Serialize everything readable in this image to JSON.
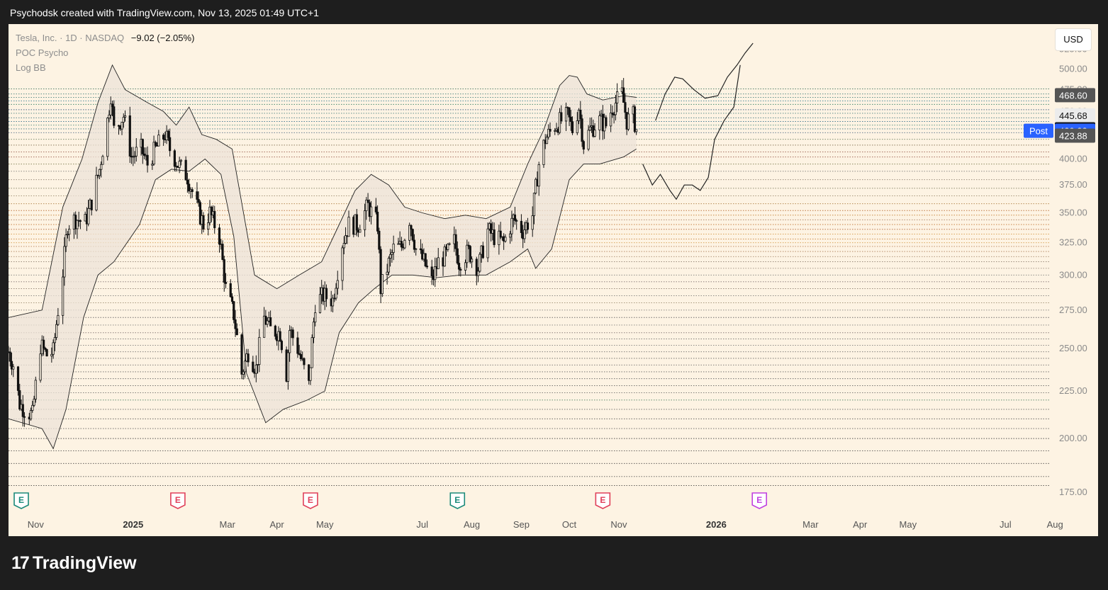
{
  "header": {
    "text": "Psychodsk created with TradingView.com, Nov 13, 2025 01:49 UTC+1"
  },
  "legend": {
    "symbol": "Tesla, Inc. · 1D · NASDAQ",
    "change": "−9.02 (−2.05%)",
    "indicator1": "POC Psycho",
    "indicator2": "Log BB"
  },
  "currency_button": "USD",
  "brand": "TradingView",
  "chart_data": {
    "type": "candlestick",
    "y_axis": {
      "scale": "log",
      "range": [
        172,
        555
      ],
      "ticks": [
        "175.00",
        "200.00",
        "225.00",
        "250.00",
        "275.00",
        "300.00",
        "325.00",
        "350.00",
        "375.00",
        "400.00",
        "425.00",
        "450.00",
        "475.00",
        "500.00",
        "525.00"
      ]
    },
    "x_axis": {
      "range": [
        "2024-10-15",
        "2026-08-28"
      ],
      "ticks": [
        {
          "label": "Nov",
          "date": "2024-11-01",
          "bold": false
        },
        {
          "label": "2025",
          "date": "2025-01-01",
          "bold": true
        },
        {
          "label": "Mar",
          "date": "2025-03-01",
          "bold": false
        },
        {
          "label": "Apr",
          "date": "2025-04-01",
          "bold": false
        },
        {
          "label": "May",
          "date": "2025-05-01",
          "bold": false
        },
        {
          "label": "Jul",
          "date": "2025-07-01",
          "bold": false
        },
        {
          "label": "Aug",
          "date": "2025-08-01",
          "bold": false
        },
        {
          "label": "Sep",
          "date": "2025-09-01",
          "bold": false
        },
        {
          "label": "Oct",
          "date": "2025-10-01",
          "bold": false
        },
        {
          "label": "Nov",
          "date": "2025-11-01",
          "bold": false
        },
        {
          "label": "2026",
          "date": "2026-01-01",
          "bold": true
        },
        {
          "label": "Mar",
          "date": "2026-03-01",
          "bold": false
        },
        {
          "label": "Apr",
          "date": "2026-04-01",
          "bold": false
        },
        {
          "label": "May",
          "date": "2026-05-01",
          "bold": false
        },
        {
          "label": "Jul",
          "date": "2026-07-01",
          "bold": false
        },
        {
          "label": "Aug",
          "date": "2026-08-01",
          "bold": false
        }
      ]
    },
    "price_series": [
      [
        "2024-10-15",
        248
      ],
      [
        "2024-10-18",
        240
      ],
      [
        "2024-10-22",
        218
      ],
      [
        "2024-10-25",
        215
      ],
      [
        "2024-10-30",
        212
      ],
      [
        "2024-11-04",
        252
      ],
      [
        "2024-11-08",
        246
      ],
      [
        "2024-11-12",
        248
      ],
      [
        "2024-11-18",
        302
      ],
      [
        "2024-11-21",
        340
      ],
      [
        "2024-11-26",
        345
      ],
      [
        "2024-12-02",
        342
      ],
      [
        "2024-12-06",
        360
      ],
      [
        "2024-12-11",
        390
      ],
      [
        "2024-12-16",
        440
      ],
      [
        "2024-12-18",
        470
      ],
      [
        "2024-12-20",
        430
      ],
      [
        "2024-12-26",
        445
      ],
      [
        "2024-12-31",
        402
      ],
      [
        "2025-01-06",
        410
      ],
      [
        "2025-01-10",
        395
      ],
      [
        "2025-01-15",
        410
      ],
      [
        "2025-01-21",
        425
      ],
      [
        "2025-01-24",
        410
      ],
      [
        "2025-01-29",
        395
      ],
      [
        "2025-02-04",
        383
      ],
      [
        "2025-02-10",
        355
      ],
      [
        "2025-02-14",
        340
      ],
      [
        "2025-02-18",
        350
      ],
      [
        "2025-02-24",
        330
      ],
      [
        "2025-02-28",
        290
      ],
      [
        "2025-03-05",
        272
      ],
      [
        "2025-03-10",
        235
      ],
      [
        "2025-03-14",
        248
      ],
      [
        "2025-03-19",
        238
      ],
      [
        "2025-03-24",
        270
      ],
      [
        "2025-03-28",
        262
      ],
      [
        "2025-04-03",
        260
      ],
      [
        "2025-04-07",
        235
      ],
      [
        "2025-04-09",
        262
      ],
      [
        "2025-04-14",
        250
      ],
      [
        "2025-04-21",
        228
      ],
      [
        "2025-04-25",
        280
      ],
      [
        "2025-04-30",
        285
      ],
      [
        "2025-05-06",
        282
      ],
      [
        "2025-05-12",
        325
      ],
      [
        "2025-05-16",
        340
      ],
      [
        "2025-05-22",
        340
      ],
      [
        "2025-05-28",
        356
      ],
      [
        "2025-06-03",
        340
      ],
      [
        "2025-06-05",
        290
      ],
      [
        "2025-06-09",
        305
      ],
      [
        "2025-06-13",
        320
      ],
      [
        "2025-06-18",
        322
      ],
      [
        "2025-06-23",
        345
      ],
      [
        "2025-06-27",
        320
      ],
      [
        "2025-07-02",
        310
      ],
      [
        "2025-07-07",
        295
      ],
      [
        "2025-07-11",
        310
      ],
      [
        "2025-07-16",
        315
      ],
      [
        "2025-07-21",
        326
      ],
      [
        "2025-07-24",
        310
      ],
      [
        "2025-07-30",
        318
      ],
      [
        "2025-08-05",
        305
      ],
      [
        "2025-08-11",
        335
      ],
      [
        "2025-08-15",
        330
      ],
      [
        "2025-08-21",
        325
      ],
      [
        "2025-08-27",
        345
      ],
      [
        "2025-09-02",
        335
      ],
      [
        "2025-09-08",
        348
      ],
      [
        "2025-09-12",
        395
      ],
      [
        "2025-09-16",
        420
      ],
      [
        "2025-09-22",
        435
      ],
      [
        "2025-09-26",
        440
      ],
      [
        "2025-09-30",
        445
      ],
      [
        "2025-10-03",
        430
      ],
      [
        "2025-10-07",
        455
      ],
      [
        "2025-10-10",
        415
      ],
      [
        "2025-10-14",
        430
      ],
      [
        "2025-10-20",
        440
      ],
      [
        "2025-10-24",
        435
      ],
      [
        "2025-10-28",
        455
      ],
      [
        "2025-11-03",
        470
      ],
      [
        "2025-11-06",
        440
      ],
      [
        "2025-11-10",
        445
      ],
      [
        "2025-11-12",
        430
      ]
    ],
    "last_price": 430.6,
    "price_labels": [
      {
        "value": 468.6,
        "text": "468.60",
        "bg": "#555555"
      },
      {
        "value": 445.68,
        "text": "445.68",
        "bg": "#ececec"
      },
      {
        "value": 430.6,
        "text": "430.60",
        "bg": "#131722"
      },
      {
        "value": 429.03,
        "text": "429.03",
        "bg": "#2962ff",
        "tag": "Post"
      },
      {
        "value": 423.88,
        "text": "423.88",
        "bg": "#555555"
      }
    ],
    "bollinger_bands": {
      "upper": [
        [
          "2024-10-15",
          270
        ],
        [
          "2024-11-05",
          275
        ],
        [
          "2024-11-18",
          355
        ],
        [
          "2024-11-30",
          400
        ],
        [
          "2024-12-10",
          460
        ],
        [
          "2024-12-19",
          505
        ],
        [
          "2024-12-27",
          475
        ],
        [
          "2025-01-10",
          460
        ],
        [
          "2025-01-20",
          450
        ],
        [
          "2025-01-28",
          435
        ],
        [
          "2025-02-05",
          455
        ],
        [
          "2025-02-13",
          425
        ],
        [
          "2025-02-22",
          420
        ],
        [
          "2025-03-04",
          410
        ],
        [
          "2025-03-18",
          300
        ],
        [
          "2025-04-01",
          290
        ],
        [
          "2025-04-15",
          300
        ],
        [
          "2025-04-29",
          310
        ],
        [
          "2025-05-10",
          340
        ],
        [
          "2025-05-20",
          370
        ],
        [
          "2025-05-30",
          385
        ],
        [
          "2025-06-10",
          375
        ],
        [
          "2025-06-20",
          355
        ],
        [
          "2025-07-01",
          350
        ],
        [
          "2025-07-15",
          345
        ],
        [
          "2025-07-28",
          348
        ],
        [
          "2025-08-10",
          345
        ],
        [
          "2025-08-25",
          355
        ],
        [
          "2025-09-05",
          395
        ],
        [
          "2025-09-15",
          430
        ],
        [
          "2025-09-25",
          480
        ],
        [
          "2025-10-01",
          492
        ],
        [
          "2025-10-06",
          490
        ],
        [
          "2025-10-12",
          470
        ],
        [
          "2025-10-22",
          463
        ],
        [
          "2025-11-04",
          468
        ],
        [
          "2025-11-12",
          466
        ]
      ],
      "lower": [
        [
          "2024-10-15",
          210
        ],
        [
          "2024-11-05",
          205
        ],
        [
          "2024-11-12",
          195
        ],
        [
          "2024-11-20",
          215
        ],
        [
          "2024-12-01",
          270
        ],
        [
          "2024-12-10",
          300
        ],
        [
          "2024-12-20",
          310
        ],
        [
          "2025-01-05",
          340
        ],
        [
          "2025-01-15",
          380
        ],
        [
          "2025-01-25",
          390
        ],
        [
          "2025-02-05",
          388
        ],
        [
          "2025-02-15",
          400
        ],
        [
          "2025-02-25",
          385
        ],
        [
          "2025-03-05",
          330
        ],
        [
          "2025-03-13",
          235
        ],
        [
          "2025-03-25",
          208
        ],
        [
          "2025-04-05",
          215
        ],
        [
          "2025-04-20",
          220
        ],
        [
          "2025-05-01",
          225
        ],
        [
          "2025-05-10",
          260
        ],
        [
          "2025-05-22",
          280
        ],
        [
          "2025-06-01",
          290
        ],
        [
          "2025-06-12",
          300
        ],
        [
          "2025-06-25",
          300
        ],
        [
          "2025-07-10",
          298
        ],
        [
          "2025-07-25",
          300
        ],
        [
          "2025-08-10",
          300
        ],
        [
          "2025-08-25",
          310
        ],
        [
          "2025-09-05",
          320
        ],
        [
          "2025-09-10",
          305
        ],
        [
          "2025-09-20",
          320
        ],
        [
          "2025-10-01",
          380
        ],
        [
          "2025-10-10",
          395
        ],
        [
          "2025-10-20",
          395
        ],
        [
          "2025-11-04",
          402
        ],
        [
          "2025-11-12",
          410
        ]
      ]
    },
    "projection_path_1": [
      [
        "2025-11-16",
        395
      ],
      [
        "2025-11-22",
        375
      ],
      [
        "2025-11-27",
        385
      ],
      [
        "2025-12-03",
        370
      ],
      [
        "2025-12-07",
        362
      ],
      [
        "2025-12-12",
        375
      ],
      [
        "2025-12-17",
        375
      ],
      [
        "2025-12-22",
        370
      ],
      [
        "2025-12-27",
        382
      ],
      [
        "2025-12-31",
        420
      ],
      [
        "2026-01-06",
        440
      ],
      [
        "2026-01-12",
        455
      ],
      [
        "2026-01-16",
        505
      ]
    ],
    "projection_path_2": [
      [
        "2025-11-24",
        440
      ],
      [
        "2025-11-30",
        470
      ],
      [
        "2025-12-06",
        490
      ],
      [
        "2025-12-11",
        488
      ],
      [
        "2025-12-18",
        475
      ],
      [
        "2025-12-25",
        465
      ],
      [
        "2026-01-02",
        468
      ],
      [
        "2026-01-08",
        490
      ],
      [
        "2026-01-14",
        505
      ],
      [
        "2026-01-19",
        520
      ],
      [
        "2026-01-24",
        533
      ]
    ],
    "poc_levels": [
      {
        "value": 476,
        "color": "#1f5f4a"
      },
      {
        "value": 470,
        "color": "#1e6a6a"
      },
      {
        "value": 466,
        "color": "#2a6f6f"
      },
      {
        "value": 462,
        "color": "#1a6f8a"
      },
      {
        "value": 458,
        "color": "#2b7a5a"
      },
      {
        "value": 452,
        "color": "#2a4f7a"
      },
      {
        "value": 448,
        "color": "#2a7070"
      },
      {
        "value": 443,
        "color": "#1e6070"
      },
      {
        "value": 439,
        "color": "#2c6a8a"
      },
      {
        "value": 435,
        "color": "#2a7a6a"
      },
      {
        "value": 431,
        "color": "#1a5f6f"
      },
      {
        "value": 427,
        "color": "#3a5a7a"
      },
      {
        "value": 420,
        "color": "#556b4a"
      },
      {
        "value": 414,
        "color": "#7a6a4a"
      },
      {
        "value": 407,
        "color": "#8a4a3a"
      },
      {
        "value": 402,
        "color": "#9a5a4a"
      },
      {
        "value": 395,
        "color": "#7a7a4a"
      },
      {
        "value": 388,
        "color": "#6a6a6a"
      },
      {
        "value": 380,
        "color": "#7a6a5a"
      },
      {
        "value": 372,
        "color": "#6a6a4a"
      },
      {
        "value": 365,
        "color": "#8a7a5a"
      },
      {
        "value": 358,
        "color": "#aa7a3a"
      },
      {
        "value": 352,
        "color": "#b5652a"
      },
      {
        "value": 348,
        "color": "#c07a2a"
      },
      {
        "value": 344,
        "color": "#9a6a4a"
      },
      {
        "value": 340,
        "color": "#c0702a"
      },
      {
        "value": 336,
        "color": "#b06030"
      },
      {
        "value": 332,
        "color": "#d08a2a"
      },
      {
        "value": 328,
        "color": "#c07020"
      },
      {
        "value": 325,
        "color": "#d09030"
      },
      {
        "value": 322,
        "color": "#b07040"
      },
      {
        "value": 318,
        "color": "#a06a40"
      },
      {
        "value": 314,
        "color": "#9a7a5a"
      },
      {
        "value": 310,
        "color": "#7a6a5a"
      },
      {
        "value": 305,
        "color": "#8a7a6a"
      },
      {
        "value": 300,
        "color": "#6a6a6a"
      },
      {
        "value": 295,
        "color": "#6a5a5a"
      },
      {
        "value": 290,
        "color": "#7a6a5a"
      },
      {
        "value": 285,
        "color": "#6a6a6a"
      },
      {
        "value": 280,
        "color": "#8a7a5a"
      },
      {
        "value": 275,
        "color": "#6a6a6a"
      },
      {
        "value": 270,
        "color": "#5a5a5a"
      },
      {
        "value": 265,
        "color": "#6a6a6a"
      },
      {
        "value": 260,
        "color": "#7a6a6a"
      },
      {
        "value": 256,
        "color": "#5a5a5a"
      },
      {
        "value": 252,
        "color": "#6a6a6a"
      },
      {
        "value": 248,
        "color": "#5a5a5a"
      },
      {
        "value": 244,
        "color": "#4a4a4a"
      },
      {
        "value": 240,
        "color": "#5a5a5a"
      },
      {
        "value": 236,
        "color": "#4a4a4a"
      },
      {
        "value": 232,
        "color": "#5a5a5a"
      },
      {
        "value": 228,
        "color": "#4a4a4a"
      },
      {
        "value": 224,
        "color": "#5a5a5a"
      },
      {
        "value": 220,
        "color": "#2a6a4a"
      },
      {
        "value": 215,
        "color": "#4a4a4a"
      },
      {
        "value": 210,
        "color": "#3a3a3a"
      },
      {
        "value": 205,
        "color": "#4a4a4a"
      },
      {
        "value": 200,
        "color": "#3a3a3a"
      },
      {
        "value": 194,
        "color": "#3a3a3a"
      },
      {
        "value": 188,
        "color": "#2a2a2a"
      },
      {
        "value": 182,
        "color": "#3a3a3a"
      },
      {
        "value": 178,
        "color": "#2a2a2a"
      }
    ],
    "earnings_markers": [
      {
        "date": "2024-10-23",
        "label": "E",
        "color": "#1b8a7a"
      },
      {
        "date": "2025-01-29",
        "label": "E",
        "color": "#e0405a"
      },
      {
        "date": "2025-04-22",
        "label": "E",
        "color": "#e0405a"
      },
      {
        "date": "2025-07-23",
        "label": "E",
        "color": "#1b8a7a"
      },
      {
        "date": "2025-10-22",
        "label": "E",
        "color": "#e0405a"
      },
      {
        "date": "2026-01-28",
        "label": "E",
        "color": "#c040e0",
        "upcoming": true
      }
    ],
    "colors": {
      "background": "#fdf3e3",
      "candle": "#111111",
      "band_fill": "#ece3d8",
      "band_line": "#222222",
      "projection": "#222222",
      "axis_text": "#8a8a8a"
    }
  }
}
